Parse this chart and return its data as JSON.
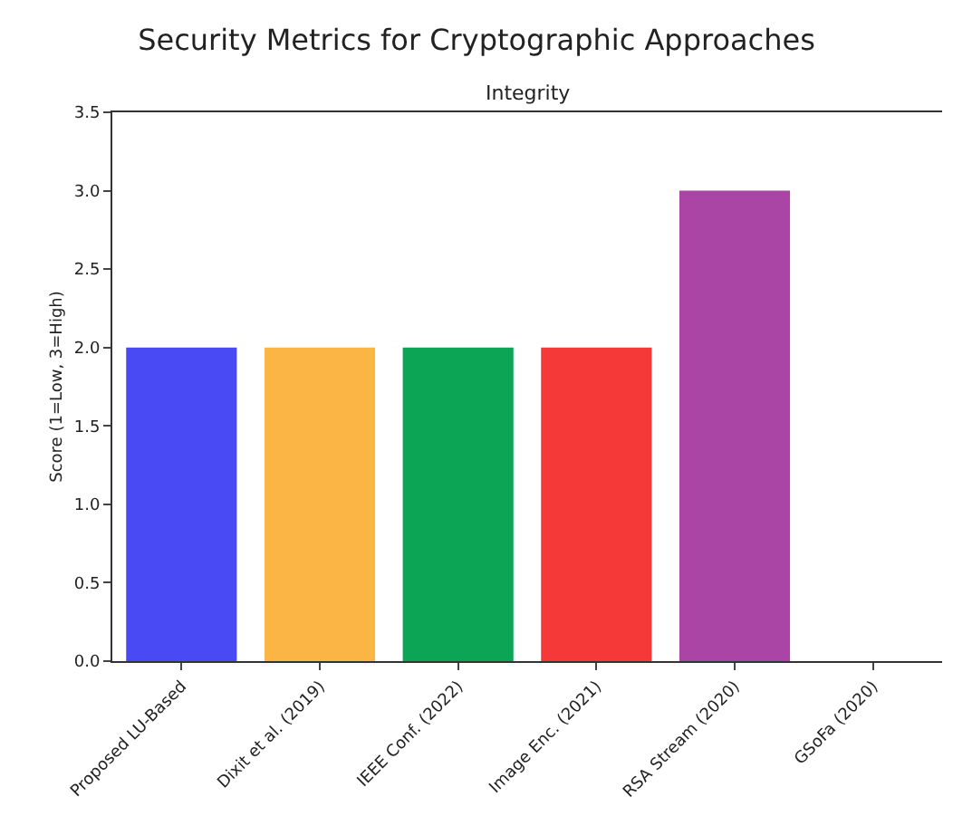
{
  "chart_data": {
    "type": "bar",
    "title": "Security Metrics for Cryptographic Approaches",
    "subtitle": "Integrity",
    "ylabel": "Score (1=Low, 3=High)",
    "categories": [
      "Proposed LU-Based",
      "Dixit et al. (2019)",
      "IEEE Conf. (2022)",
      "Image Enc. (2021)",
      "RSA Stream (2020)",
      "GSoFa (2020)"
    ],
    "values": [
      2,
      2,
      2,
      2,
      3,
      0
    ],
    "colors": [
      "#4a4af5",
      "#fbb545",
      "#0ca555",
      "#f53838",
      "#aa44a5",
      "#888888"
    ],
    "ylim": [
      0,
      3.5
    ],
    "yticks": [
      {
        "value": 0,
        "label": "0.0"
      },
      {
        "value": 0.5,
        "label": "0.5"
      },
      {
        "value": 1,
        "label": "1.0"
      },
      {
        "value": 1.5,
        "label": "1.5"
      },
      {
        "value": 2,
        "label": "2.0"
      },
      {
        "value": 2.5,
        "label": "2.5"
      },
      {
        "value": 3,
        "label": "3.0"
      },
      {
        "value": 3.5,
        "label": "3.5"
      }
    ],
    "grid": false,
    "legend": false
  }
}
